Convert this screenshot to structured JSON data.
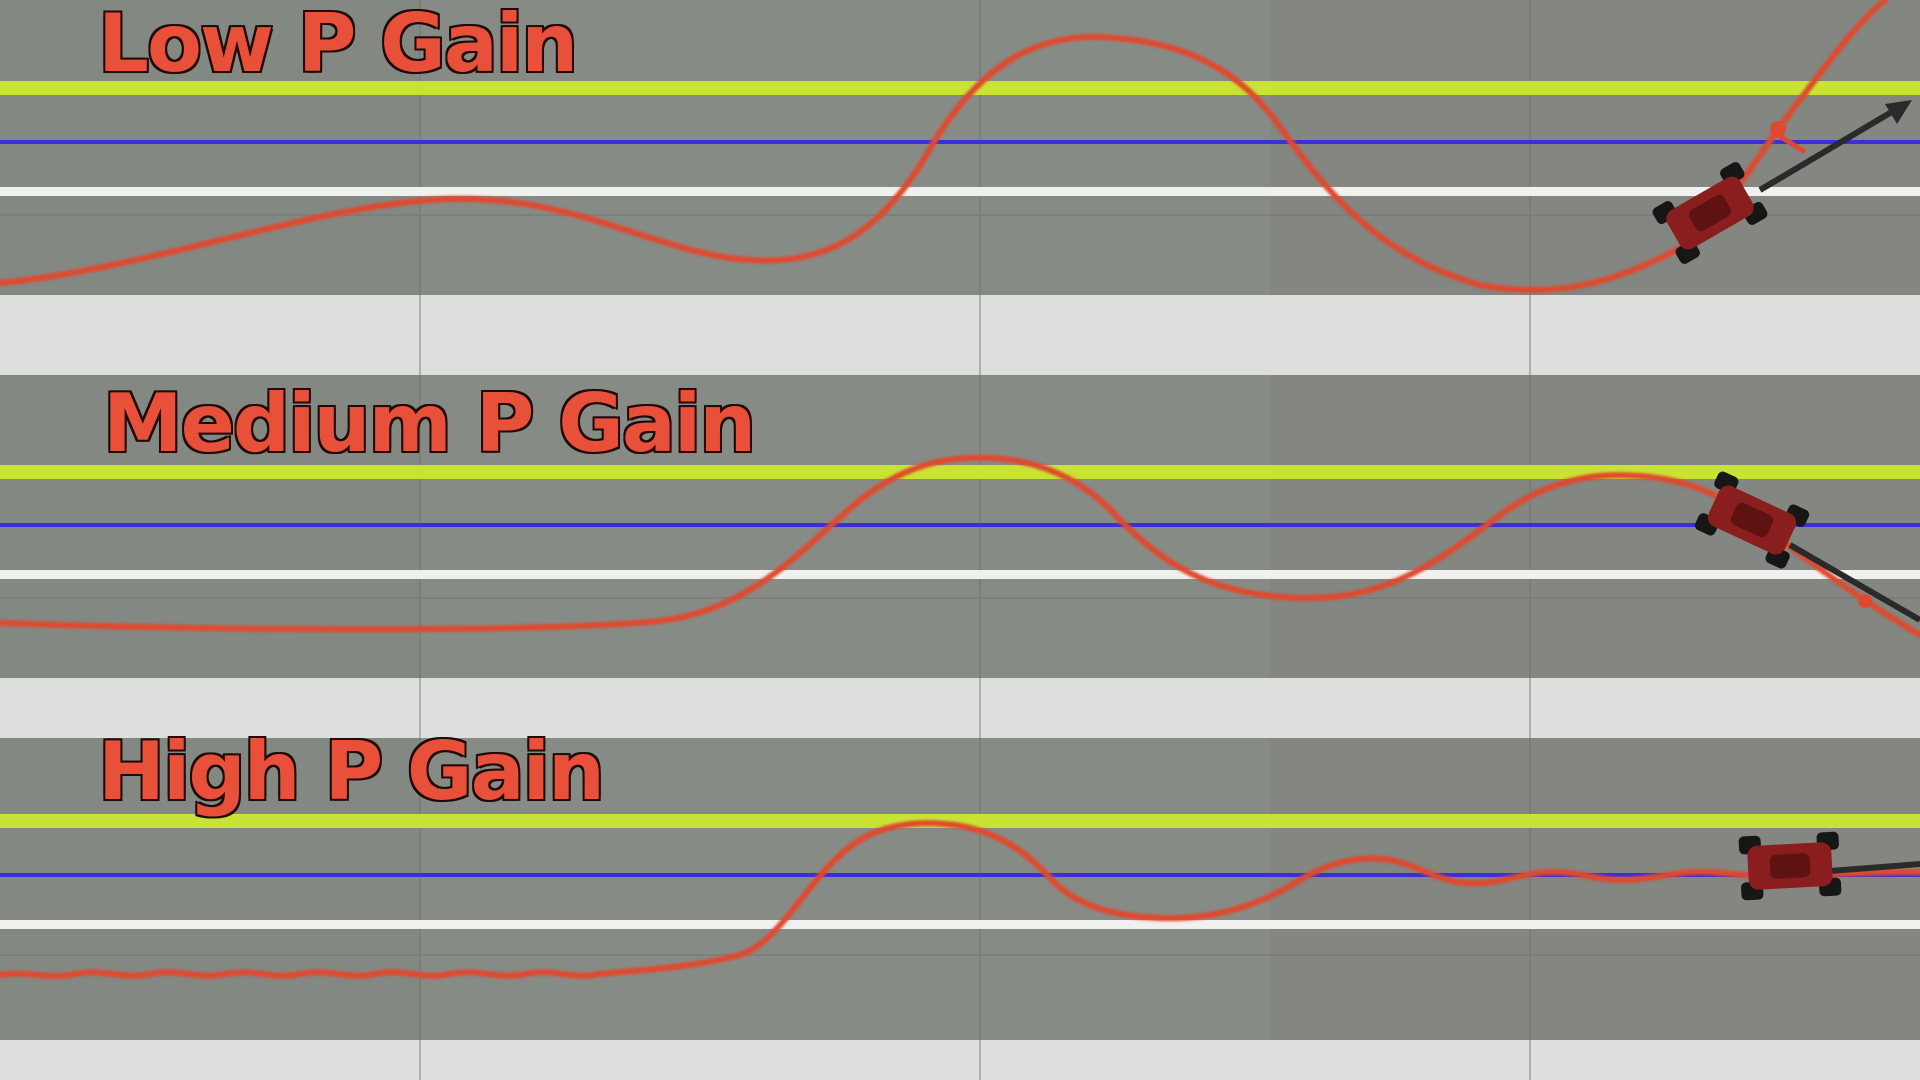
{
  "labels": {
    "low": "Low P Gain",
    "medium": "Medium P Gain",
    "high": "High P Gain"
  },
  "colors": {
    "floor_gray": "#868a85",
    "floor_light": "#dcdfdb",
    "target_line_yellow": "#c9e334",
    "center_line_blue": "#3a2fd8",
    "lane_line_white": "#f0f0ee",
    "path_red": "#e0482f",
    "label_red": "#e8503a",
    "car_red": "#8a1d1d"
  },
  "icons": {
    "car": "robot-car-icon",
    "heading_arrow": "heading-arrow-icon"
  }
}
